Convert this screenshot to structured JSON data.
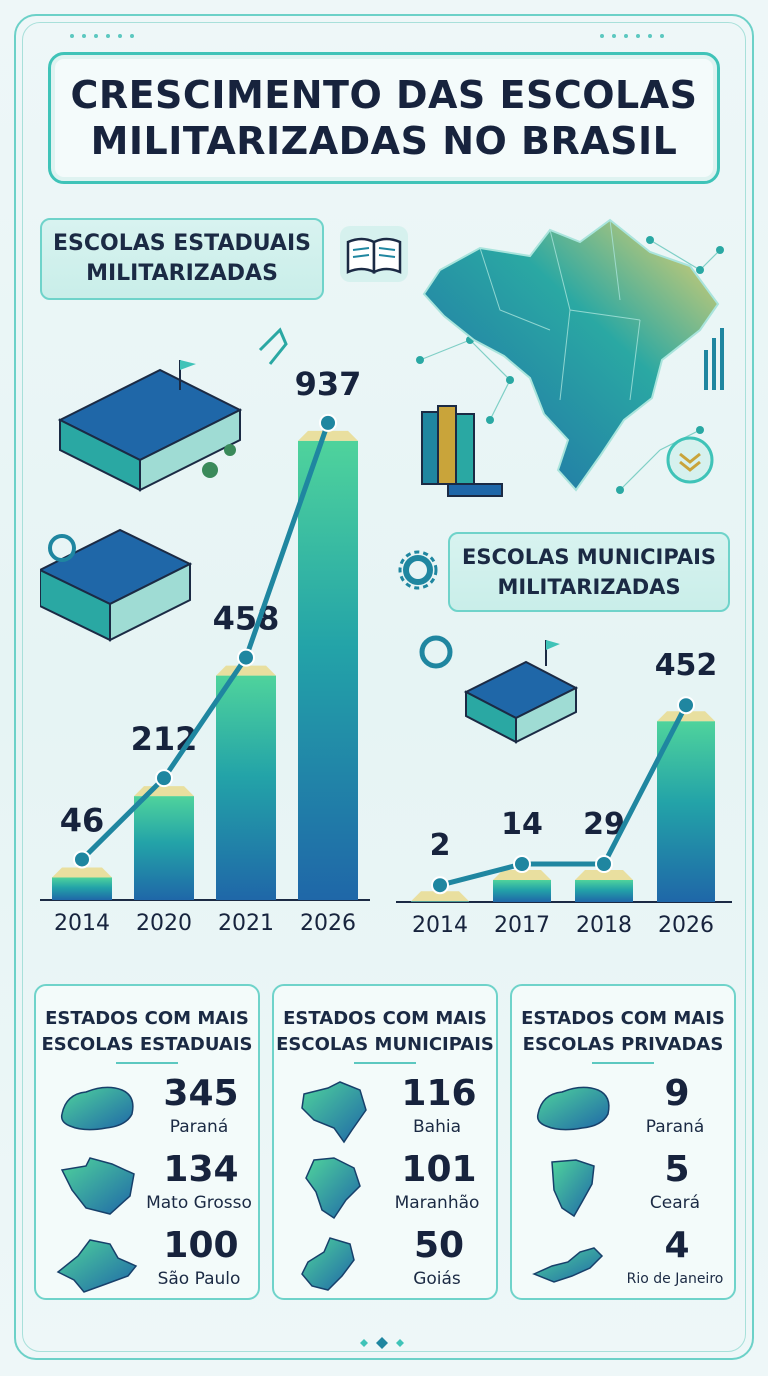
{
  "title": "CRESCIMENTO DAS ESCOLAS\nMILITARIZADAS NO BRASIL",
  "state_chart": {
    "label": "ESCOLAS ESTADUAIS\nMILITARIZADAS",
    "chart_data": {
      "type": "bar",
      "categories": [
        "2014",
        "2020",
        "2021",
        "2026"
      ],
      "values": [
        46,
        212,
        458,
        937
      ],
      "ylim": [
        0,
        1000
      ]
    }
  },
  "municipal_chart": {
    "label": "ESCOLAS MUNICIPAIS\nMILITARIZADAS",
    "chart_data": {
      "type": "bar",
      "categories": [
        "2014",
        "2017",
        "2018",
        "2026"
      ],
      "values": [
        2,
        14,
        29,
        452
      ],
      "ylim": [
        0,
        500
      ]
    }
  },
  "panels": [
    {
      "heading": "ESTADOS COM MAIS\nESCOLAS ESTADUAIS",
      "rows": [
        {
          "value": "345",
          "state": "Paraná",
          "icon": "parana-map-icon"
        },
        {
          "value": "134",
          "state": "Mato Grosso",
          "icon": "mato-grosso-map-icon"
        },
        {
          "value": "100",
          "state": "São Paulo",
          "icon": "sao-paulo-map-icon"
        }
      ]
    },
    {
      "heading": "ESTADOS COM MAIS\nESCOLAS MUNICIPAIS",
      "rows": [
        {
          "value": "116",
          "state": "Bahia",
          "icon": "bahia-map-icon"
        },
        {
          "value": "101",
          "state": "Maranhão",
          "icon": "maranhao-map-icon"
        },
        {
          "value": "50",
          "state": "Goiás",
          "icon": "goias-map-icon"
        }
      ]
    },
    {
      "heading": "ESTADOS COM MAIS\nESCOLAS PRIVADAS",
      "rows": [
        {
          "value": "9",
          "state": "Paraná",
          "icon": "parana-map-icon"
        },
        {
          "value": "5",
          "state": "Ceará",
          "icon": "ceara-map-icon"
        },
        {
          "value": "4",
          "state": "Rio de Janeiro",
          "icon": "rio-de-janeiro-map-icon"
        }
      ]
    }
  ],
  "colors": {
    "accent": "#3fc3b8",
    "bar_top": "#4fd39c",
    "bar_bottom": "#1f67a8",
    "line": "#1f86a0",
    "text": "#17233d"
  }
}
